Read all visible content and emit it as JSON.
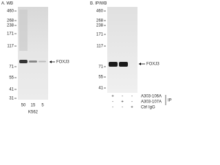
{
  "panels": [
    {
      "title": "A. WB",
      "markers": [
        "460",
        "268",
        "238",
        "171",
        "117",
        "71",
        "55",
        "41",
        "31"
      ],
      "target": "FOXJ3",
      "lanes": [
        "50",
        "15",
        "5"
      ],
      "sample": "K562"
    },
    {
      "title": "B. IP/WB",
      "markers": [
        "460",
        "268",
        "238",
        "171",
        "117",
        "71",
        "55",
        "41"
      ],
      "target": "FOXJ3",
      "rows": [
        {
          "label": "A303-106A",
          "signs": [
            "+",
            "-",
            "-"
          ]
        },
        {
          "label": "A303-107A",
          "signs": [
            "-",
            "+",
            "-"
          ]
        },
        {
          "label": "Ctrl IgG",
          "signs": [
            "-",
            "-",
            "+"
          ]
        }
      ],
      "group": "IP"
    }
  ]
}
